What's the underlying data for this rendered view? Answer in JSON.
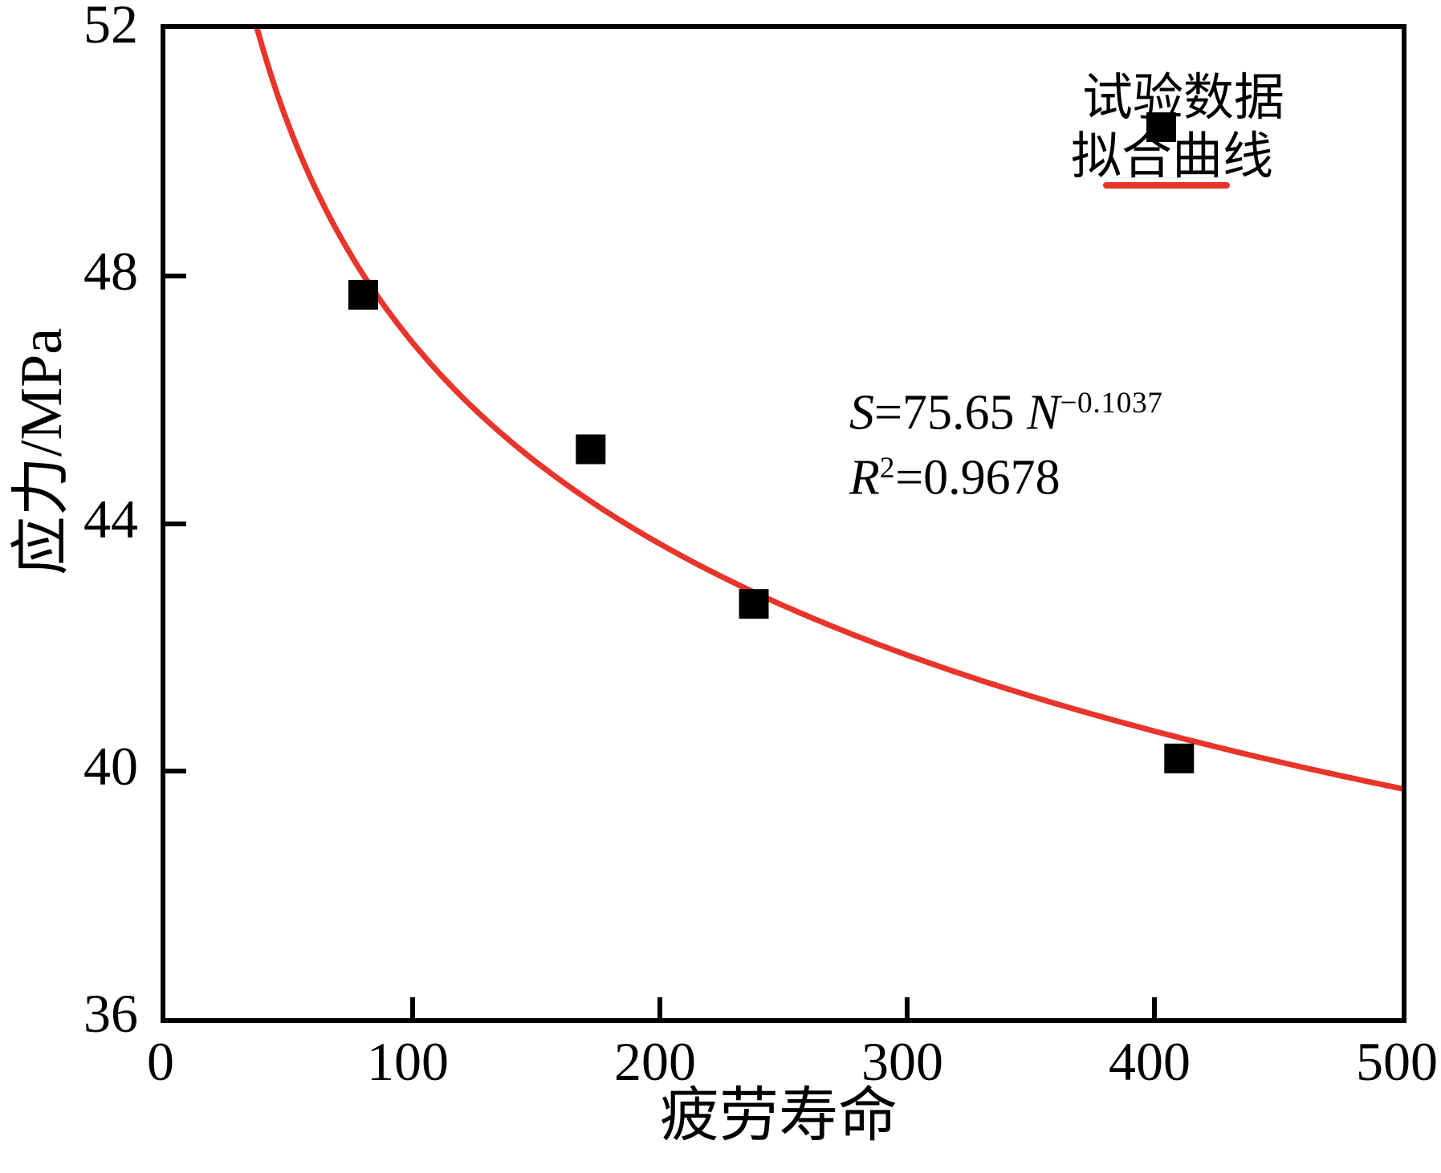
{
  "figure": {
    "background": "#ffffff",
    "text_color": "#000000",
    "accent_red": "#e8342a"
  },
  "chart_data": {
    "type": "scatter",
    "title": "",
    "xlabel": "疲劳寿命",
    "ylabel": "应力/MPa",
    "xlim": [
      0,
      500
    ],
    "ylim": [
      36,
      52
    ],
    "x_ticks": [
      0,
      100,
      200,
      300,
      400,
      500
    ],
    "y_ticks": [
      36,
      40,
      44,
      48,
      52
    ],
    "grid": false,
    "legend_position": "top-right",
    "series": [
      {
        "name": "试验数据",
        "type": "scatter",
        "marker": "square",
        "color": "#000000",
        "points": [
          [
            80,
            47.7
          ],
          [
            172,
            45.2
          ],
          [
            238,
            42.7
          ],
          [
            410,
            40.2
          ]
        ]
      },
      {
        "name": "拟合曲线",
        "type": "line",
        "color": "#e8342a",
        "fit": {
          "model": "power",
          "coefficient": 75.65,
          "exponent": -0.1037
        }
      }
    ],
    "annotation_text": [
      "S=75.65 N^(−0.1037)",
      "R²=0.9678"
    ]
  },
  "legend": {
    "item1": "试验数据",
    "item2": "拟合曲线"
  },
  "annotation": {
    "s_var": "S",
    "s_eq": "=75.65 ",
    "n_var": "N",
    "n_exp": "−0.1037",
    "r_var": "R",
    "r_sup": "2",
    "r_eq": "=0.9678"
  },
  "axes": {
    "x_label": "疲劳寿命",
    "y_label": "应力/MPa"
  }
}
